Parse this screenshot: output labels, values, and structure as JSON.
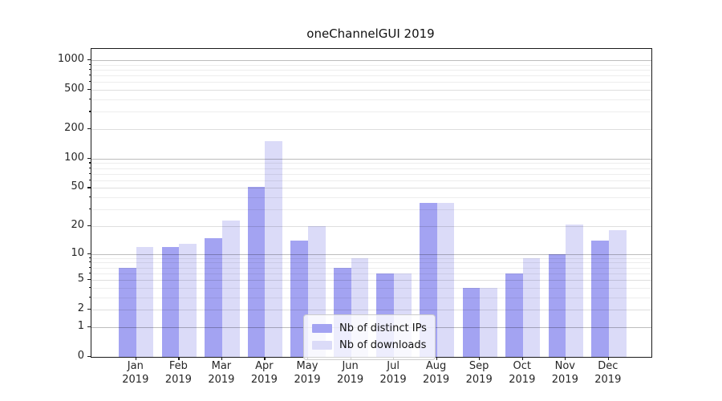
{
  "chart_data": {
    "type": "bar",
    "title": "oneChannelGUI 2019",
    "categories": [
      "Jan",
      "Feb",
      "Mar",
      "Apr",
      "May",
      "Jun",
      "Jul",
      "Aug",
      "Sep",
      "Oct",
      "Nov",
      "Dec"
    ],
    "category_year": "2019",
    "series": [
      {
        "name": "Nb of distinct IPs",
        "color": "#a3a3f2",
        "values": [
          7,
          12,
          15,
          51,
          14,
          7,
          6,
          35,
          4,
          6,
          10,
          14
        ]
      },
      {
        "name": "Nb of downloads",
        "color": "#dbdbf8",
        "values": [
          12,
          13,
          23,
          150,
          20,
          9,
          6,
          35,
          4,
          9,
          21,
          18
        ]
      }
    ],
    "xlabel": "",
    "ylabel": "",
    "ylim": [
      0,
      1000
    ],
    "y_scale": "log10(1+x)",
    "y_ticks": [
      0,
      1,
      2,
      5,
      10,
      20,
      50,
      100,
      200,
      500,
      1000
    ],
    "y_minor_ticks": [
      3,
      4,
      6,
      7,
      8,
      9,
      30,
      40,
      60,
      70,
      80,
      90,
      300,
      400,
      600,
      700,
      800,
      900
    ],
    "grid": true,
    "grid_on_top": true,
    "legend_position": "lower center"
  }
}
